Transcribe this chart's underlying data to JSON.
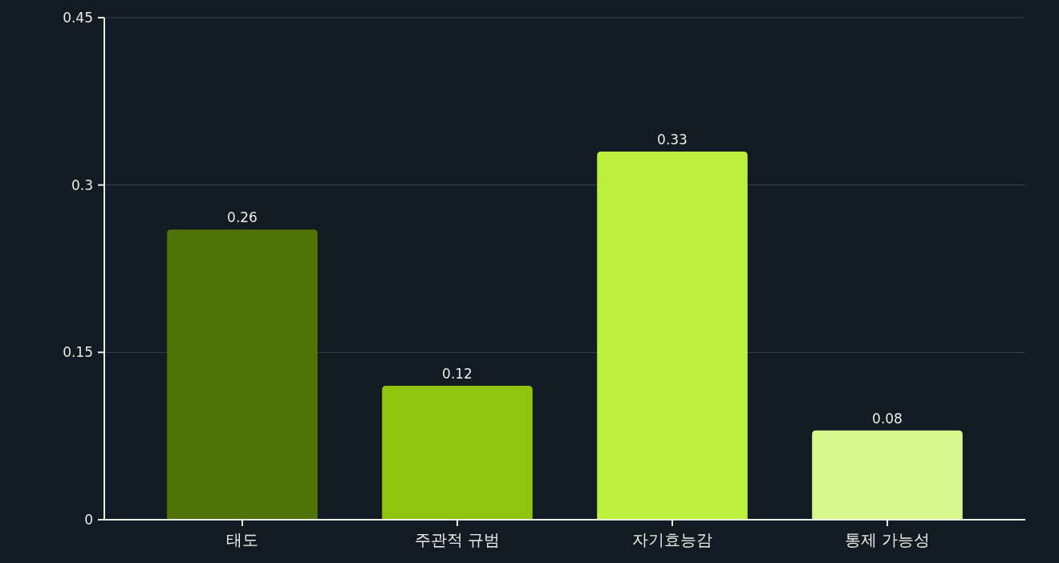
{
  "chart_data": {
    "type": "bar",
    "categories": [
      "태도",
      "주관적 규범",
      "자기효능감",
      "통제 가능성"
    ],
    "values": [
      0.26,
      0.12,
      0.33,
      0.08
    ],
    "colors": [
      "#52730a",
      "#8fc50e",
      "#bdf03c",
      "#d8f78f"
    ],
    "ylim": [
      0,
      0.45
    ],
    "yticks": [
      0,
      0.15,
      0.3,
      0.45
    ],
    "grid": "y",
    "data_labels": true
  }
}
